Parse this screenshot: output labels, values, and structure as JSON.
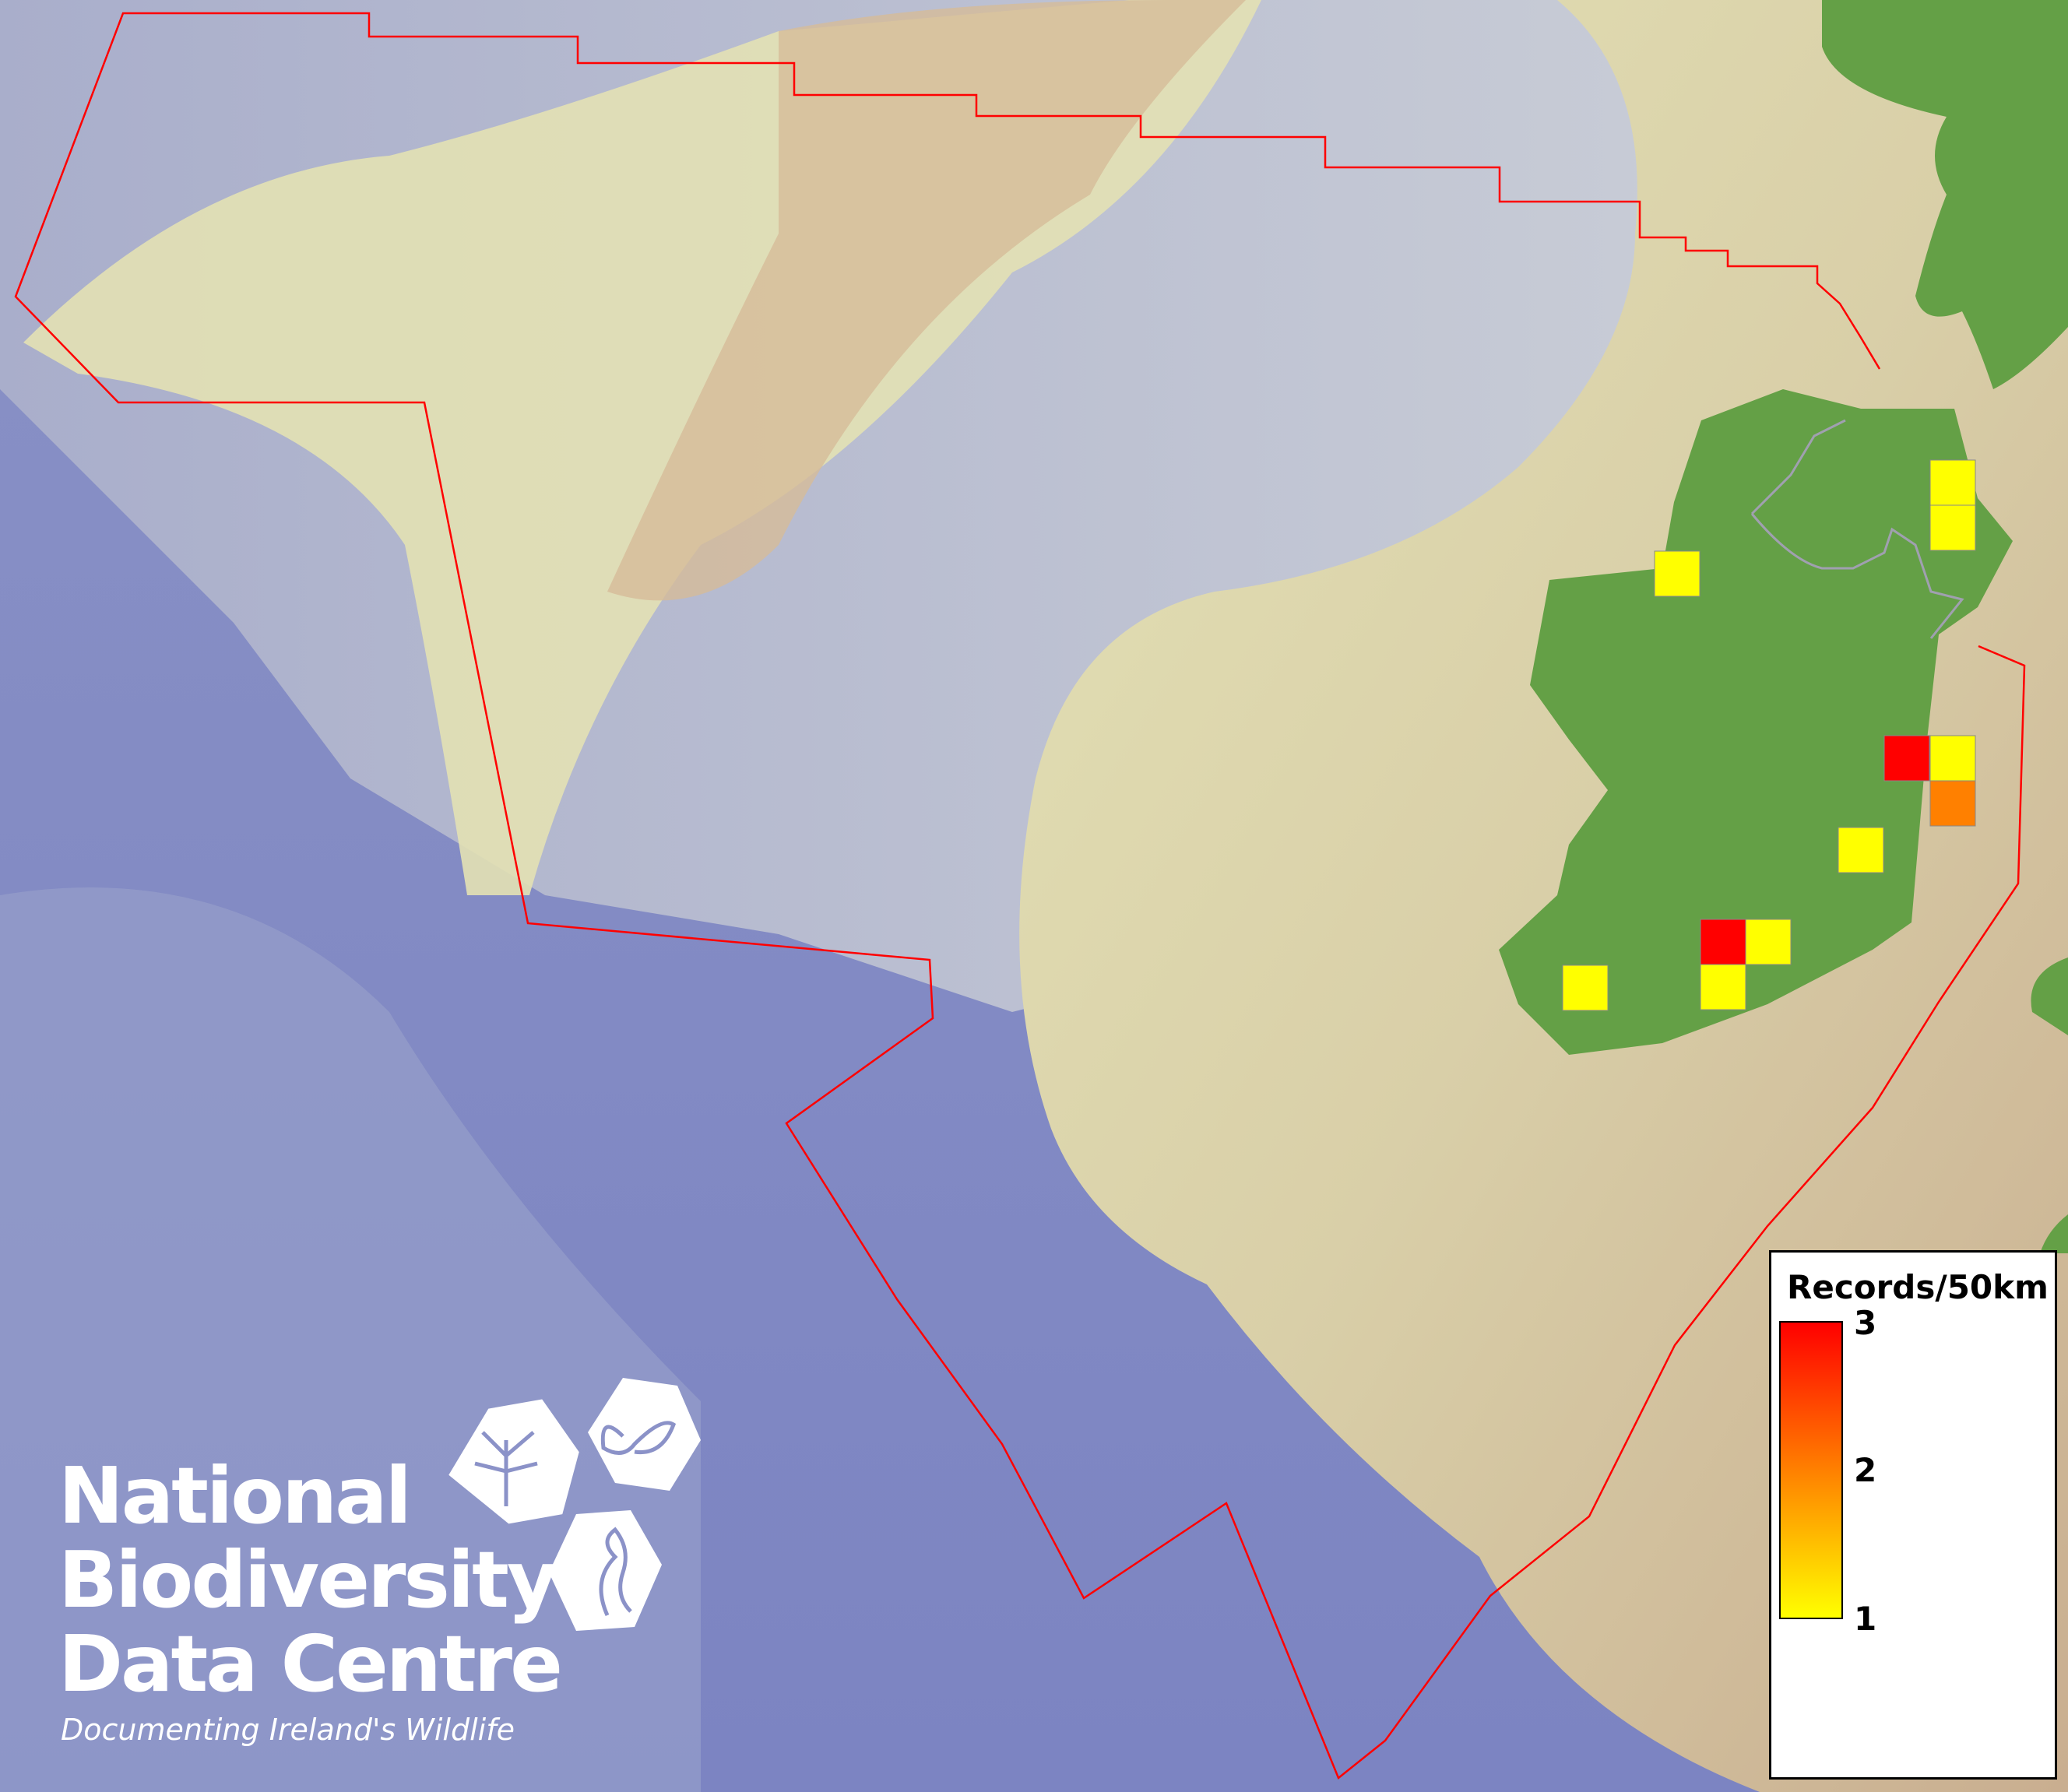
{
  "map": {
    "boundary_color": "#ff0000",
    "land_color": "#64a046",
    "shelf_color": "#cfab8c",
    "ocean_color": "#8088c4",
    "grid_cells": [
      {
        "region": "north-east",
        "row": 0,
        "value": 1
      },
      {
        "region": "north-east",
        "row": 1,
        "value": 1
      },
      {
        "region": "north-west",
        "value": 1
      },
      {
        "region": "east",
        "value": 3
      },
      {
        "region": "east",
        "value": 1
      },
      {
        "region": "east",
        "value": 2
      },
      {
        "region": "south-east-inland",
        "value": 1
      },
      {
        "region": "south",
        "value": 3
      },
      {
        "region": "south",
        "value": 1
      },
      {
        "region": "south",
        "value": 1
      },
      {
        "region": "south-west",
        "value": 1
      }
    ]
  },
  "legend": {
    "title": "Records/50km",
    "min_label": "1",
    "mid_label": "2",
    "max_label": "3",
    "min_color": "#ffff00",
    "mid_color": "#ff8000",
    "max_color": "#ff0000"
  },
  "logo": {
    "line1": "National",
    "line2": "Biodiversity",
    "line3": "Data Centre",
    "tagline": "Documenting Ireland's Wildlife"
  }
}
